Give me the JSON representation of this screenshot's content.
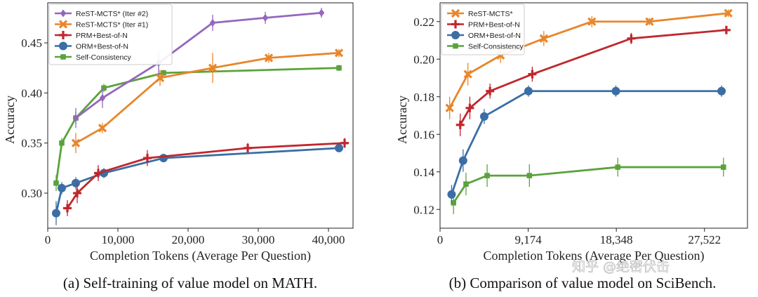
{
  "chart_data": [
    {
      "type": "line",
      "caption": "(a) Self-training of value model on MATH.",
      "xlabel": "Completion Tokens (Average Per Question)",
      "ylabel": "Accuracy",
      "xlim": [
        0,
        43500
      ],
      "ylim": [
        0.265,
        0.49
      ],
      "xticks": [
        0,
        10000,
        20000,
        30000,
        40000
      ],
      "xtick_labels": [
        "0",
        "10,000",
        "20,000",
        "30,000",
        "40,000"
      ],
      "yticks": [
        0.3,
        0.35,
        0.4,
        0.45
      ],
      "ytick_labels": [
        "0.30",
        "0.35",
        "0.40",
        "0.45"
      ],
      "grid": false,
      "legend_position": "top-left",
      "series": [
        {
          "name": "ReST-MCTS* (Iter #2)",
          "color": "#9467bd",
          "marker": "diamond",
          "x": [
            4000,
            7800,
            15800,
            23500,
            31000,
            39000
          ],
          "y": [
            0.375,
            0.395,
            0.43,
            0.47,
            0.475,
            0.48
          ],
          "err": [
            0.01,
            0.01,
            0.012,
            0.008,
            0.006,
            0.005
          ]
        },
        {
          "name": "ReST-MCTS* (Iter #1)",
          "color": "#e8862a",
          "marker": "x",
          "x": [
            4000,
            7800,
            16000,
            23500,
            31500,
            41500
          ],
          "y": [
            0.35,
            0.365,
            0.415,
            0.425,
            0.435,
            0.44
          ],
          "err": [
            0.01,
            0.005,
            0.008,
            0.015,
            0.005,
            0.004
          ]
        },
        {
          "name": "PRM+Best-of-N",
          "color": "#c0272d",
          "marker": "plus",
          "x": [
            2800,
            4200,
            7200,
            14200,
            28500,
            42300
          ],
          "y": [
            0.285,
            0.3,
            0.32,
            0.335,
            0.345,
            0.35
          ],
          "err": [
            0.008,
            0.01,
            0.008,
            0.008,
            0.005,
            0.005
          ]
        },
        {
          "name": "ORM+Best-of-N",
          "color": "#3b6ea5",
          "marker": "circle",
          "x": [
            1200,
            2000,
            4000,
            8000,
            16500,
            41500
          ],
          "y": [
            0.28,
            0.305,
            0.31,
            0.32,
            0.335,
            0.345
          ],
          "err": [
            0.012,
            0.006,
            0.006,
            0.005,
            0.004,
            0.003
          ]
        },
        {
          "name": "Self-Consistency",
          "color": "#5aa33b",
          "marker": "square",
          "x": [
            1200,
            2000,
            4000,
            8000,
            16500,
            41500
          ],
          "y": [
            0.31,
            0.35,
            0.375,
            0.405,
            0.42,
            0.425
          ],
          "err": [
            0.008,
            0.005,
            0.006,
            0.004,
            0.003,
            0.003
          ]
        }
      ]
    },
    {
      "type": "line",
      "caption": "(b) Comparison of value model on SciBench.",
      "xlabel": "Completion Tokens (Average Per Question)",
      "ylabel": "Accuracy",
      "xlim": [
        0,
        32000
      ],
      "ylim": [
        0.11,
        0.23
      ],
      "xticks": [
        0,
        9174,
        18348,
        27522
      ],
      "xtick_labels": [
        "0",
        "9,174",
        "18,348",
        "27,522"
      ],
      "yticks": [
        0.12,
        0.14,
        0.16,
        0.18,
        0.2,
        0.22
      ],
      "ytick_labels": [
        "0.12",
        "0.14",
        "0.16",
        "0.18",
        "0.20",
        "0.22"
      ],
      "grid": false,
      "legend_position": "top-left",
      "series": [
        {
          "name": "ReST-MCTS*",
          "color": "#e8862a",
          "marker": "x",
          "x": [
            1000,
            2900,
            6300,
            10800,
            15800,
            21800,
            30000
          ],
          "y": [
            0.174,
            0.192,
            0.202,
            0.211,
            0.22,
            0.22,
            0.2245
          ],
          "err": [
            0.006,
            0.006,
            0.004,
            0.004,
            0.003,
            0.002,
            0.002
          ]
        },
        {
          "name": "PRM+Best-of-N",
          "color": "#c0272d",
          "marker": "plus",
          "x": [
            2100,
            3100,
            5200,
            9600,
            19900,
            29800
          ],
          "y": [
            0.165,
            0.174,
            0.183,
            0.192,
            0.211,
            0.2155
          ],
          "err": [
            0.006,
            0.006,
            0.004,
            0.004,
            0.003,
            0.002
          ]
        },
        {
          "name": "ORM+Best-of-N",
          "color": "#3b6ea5",
          "marker": "circle",
          "x": [
            1200,
            2400,
            4600,
            9200,
            18300,
            29300
          ],
          "y": [
            0.128,
            0.146,
            0.1695,
            0.183,
            0.183,
            0.183
          ],
          "err": [
            0.005,
            0.006,
            0.004,
            0.003,
            0.003,
            0.003
          ]
        },
        {
          "name": "Self-Consistency",
          "color": "#5aa33b",
          "marker": "square",
          "x": [
            1400,
            2700,
            4900,
            9300,
            18500,
            29500
          ],
          "y": [
            0.1235,
            0.1335,
            0.138,
            0.138,
            0.1425,
            0.1425
          ],
          "err": [
            0.006,
            0.006,
            0.006,
            0.006,
            0.005,
            0.005
          ]
        }
      ]
    }
  ],
  "watermark": "知乎 @绝密伏击"
}
